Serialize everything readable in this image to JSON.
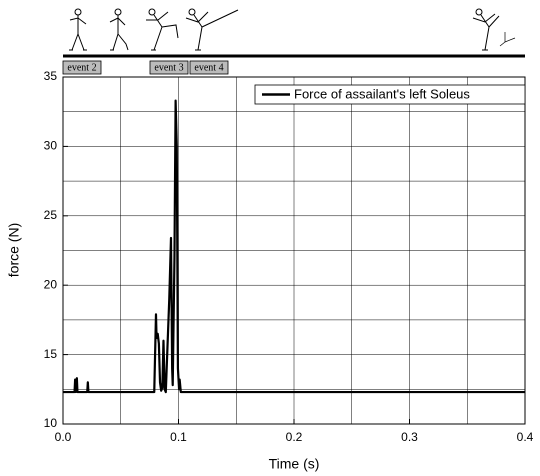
{
  "chart_data": {
    "type": "line",
    "events": [
      "event 2",
      "event 3",
      "event 4"
    ],
    "x": [
      0,
      0.01,
      0.0105,
      0.011,
      0.012,
      0.0125,
      0.021,
      0.0215,
      0.022,
      0.079,
      0.0805,
      0.081,
      0.082,
      0.083,
      0.084,
      0.085,
      0.086,
      0.087,
      0.088,
      0.089,
      0.092,
      0.0935,
      0.0945,
      0.095,
      0.0965,
      0.0975,
      0.0985,
      0.0995,
      0.1005,
      0.101,
      0.102,
      0.4
    ],
    "series": [
      {
        "name": "Force of assailant's left Soleus",
        "color": "#000000",
        "values": [
          12.3,
          12.3,
          13.2,
          12.3,
          13.3,
          12.3,
          12.3,
          13.0,
          12.3,
          12.3,
          17.9,
          16.2,
          16.5,
          15.8,
          13.0,
          12.4,
          12.6,
          16.0,
          12.5,
          12.3,
          19.0,
          23.4,
          14.0,
          12.8,
          22.0,
          33.3,
          30.0,
          14.0,
          12.5,
          13.2,
          12.3,
          12.3
        ]
      }
    ],
    "xlabel": "Time (s)",
    "ylabel": "force (N)",
    "xlim": [
      0,
      0.4
    ],
    "ylim": [
      10,
      35
    ],
    "xticks": [
      {
        "value": 0,
        "label": "0.0"
      },
      0.1,
      0.2,
      0.3,
      0.4
    ],
    "yticks": [
      10,
      15,
      20,
      25,
      30,
      35
    ],
    "grid": true,
    "legend": "upper right"
  }
}
